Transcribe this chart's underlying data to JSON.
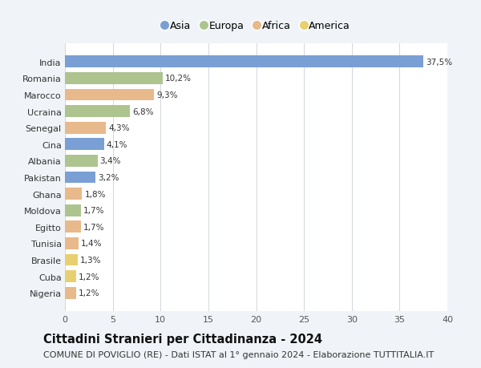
{
  "countries": [
    "India",
    "Romania",
    "Marocco",
    "Ucraina",
    "Senegal",
    "Cina",
    "Albania",
    "Pakistan",
    "Ghana",
    "Moldova",
    "Egitto",
    "Tunisia",
    "Brasile",
    "Cuba",
    "Nigeria"
  ],
  "values": [
    37.5,
    10.2,
    9.3,
    6.8,
    4.3,
    4.1,
    3.4,
    3.2,
    1.8,
    1.7,
    1.7,
    1.4,
    1.3,
    1.2,
    1.2
  ],
  "labels": [
    "37,5%",
    "10,2%",
    "9,3%",
    "6,8%",
    "4,3%",
    "4,1%",
    "3,4%",
    "3,2%",
    "1,8%",
    "1,7%",
    "1,7%",
    "1,4%",
    "1,3%",
    "1,2%",
    "1,2%"
  ],
  "continents": [
    "Asia",
    "Europa",
    "Africa",
    "Europa",
    "Africa",
    "Asia",
    "Europa",
    "Asia",
    "Africa",
    "Europa",
    "Africa",
    "Africa",
    "America",
    "America",
    "Africa"
  ],
  "continent_colors": {
    "Asia": "#7a9fd4",
    "Europa": "#aec48f",
    "Africa": "#e8b98a",
    "America": "#e8d070"
  },
  "legend_order": [
    "Asia",
    "Europa",
    "Africa",
    "America"
  ],
  "title": "Cittadini Stranieri per Cittadinanza - 2024",
  "subtitle": "COMUNE DI POVIGLIO (RE) - Dati ISTAT al 1° gennaio 2024 - Elaborazione TUTTITALIA.IT",
  "xlim": [
    0,
    40
  ],
  "xticks": [
    0,
    5,
    10,
    15,
    20,
    25,
    30,
    35,
    40
  ],
  "background_color": "#f0f4f8",
  "plot_bg_color": "#ffffff",
  "grid_color": "#d0d8e0",
  "title_fontsize": 10.5,
  "subtitle_fontsize": 8,
  "label_fontsize": 7.5,
  "tick_fontsize": 8,
  "legend_fontsize": 9
}
